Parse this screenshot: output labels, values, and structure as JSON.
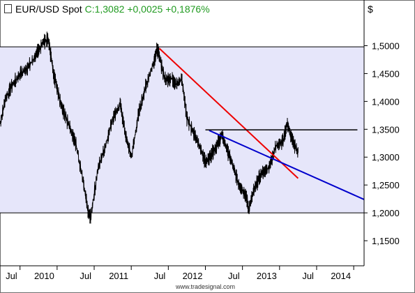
{
  "header": {
    "symbol": "EUR/USD Spot",
    "close": "C:1,3082",
    "change": "+0,0025",
    "change_pct": "+0,1876%",
    "value_color": "#1f9a1f"
  },
  "watermark": "www.tradesignal.com",
  "chart_data": {
    "type": "line",
    "title": "EUR/USD Spot",
    "ylabel": "$",
    "y_ticks": [
      "1,1500",
      "1,2000",
      "1,2500",
      "1,3000",
      "1,3500",
      "1,4000",
      "1,4500",
      "1,5000"
    ],
    "y_tick_values": [
      1.15,
      1.2,
      1.25,
      1.3,
      1.35,
      1.4,
      1.45,
      1.5
    ],
    "x_ticks": [
      "Jul",
      "2010",
      "Jul",
      "2011",
      "Jul",
      "2012",
      "Jul",
      "2013",
      "Jul",
      "2014"
    ],
    "x_tick_values": [
      2009.5,
      2010.0,
      2010.5,
      2011.0,
      2011.5,
      2012.0,
      2012.5,
      2013.0,
      2013.5,
      2014.0
    ],
    "xlim": [
      2009.23,
      2014.14
    ],
    "ylim": [
      1.105,
      1.582
    ],
    "grid": false,
    "colors": {
      "price": "#000000",
      "range_fill": "#e6e6fa",
      "red_line": "#ee0000",
      "blue_line": "#0000cc",
      "level_line": "#000000"
    },
    "range_band": [
      1.2,
      1.498
    ],
    "price": {
      "x": [
        2009.23,
        2009.3,
        2009.4,
        2009.5,
        2009.6,
        2009.7,
        2009.8,
        2009.88,
        2009.95,
        2010.05,
        2010.15,
        2010.25,
        2010.35,
        2010.42,
        2010.45,
        2010.55,
        2010.65,
        2010.75,
        2010.85,
        2010.92,
        2011.0,
        2011.1,
        2011.2,
        2011.3,
        2011.35,
        2011.45,
        2011.55,
        2011.6,
        2011.68,
        2011.75,
        2011.85,
        2011.95,
        2012.0,
        2012.08,
        2012.15,
        2012.22,
        2012.3,
        2012.38,
        2012.45,
        2012.55,
        2012.58,
        2012.65,
        2012.75,
        2012.85,
        2012.95,
        2013.05,
        2013.1,
        2013.17,
        2013.25
      ],
      "y": [
        1.36,
        1.405,
        1.43,
        1.45,
        1.46,
        1.48,
        1.505,
        1.512,
        1.45,
        1.395,
        1.36,
        1.325,
        1.255,
        1.2,
        1.192,
        1.28,
        1.32,
        1.37,
        1.395,
        1.34,
        1.3,
        1.38,
        1.43,
        1.47,
        1.495,
        1.44,
        1.44,
        1.43,
        1.44,
        1.37,
        1.34,
        1.31,
        1.29,
        1.305,
        1.32,
        1.34,
        1.31,
        1.28,
        1.25,
        1.23,
        1.206,
        1.24,
        1.27,
        1.28,
        1.32,
        1.33,
        1.36,
        1.33,
        1.308
      ]
    },
    "trendlines": [
      {
        "name": "red",
        "x": [
          2011.38,
          2013.25
        ],
        "y": [
          1.495,
          1.262
        ]
      },
      {
        "name": "blue",
        "x": [
          2012.05,
          2014.14
        ],
        "y": [
          1.348,
          1.224
        ]
      },
      {
        "name": "level",
        "x": [
          2012.0,
          2014.05
        ],
        "y": [
          1.349,
          1.349
        ]
      }
    ]
  }
}
